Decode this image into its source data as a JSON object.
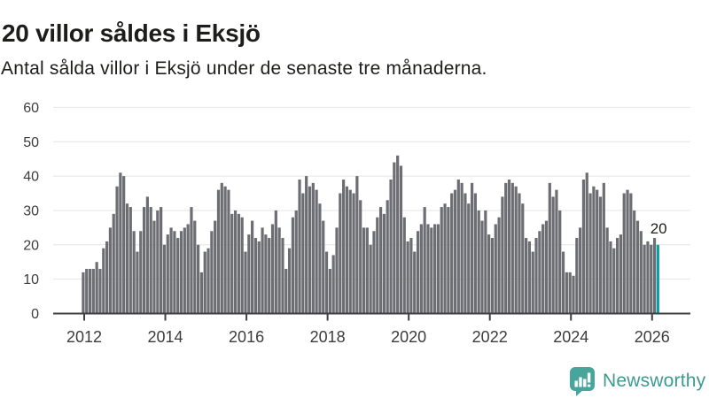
{
  "header": {
    "title": "20 villor såldes i Eksjö",
    "subtitle": "Antal sålda villor i Eksjö under de senaste tre månaderna."
  },
  "chart_data": {
    "type": "bar",
    "title": "20 villor såldes i Eksjö",
    "subtitle": "Antal sålda villor i Eksjö under de senaste tre månaderna.",
    "frequency": "monthly",
    "x_start": "2012-01",
    "x_end": "2026-03",
    "xlabel": "",
    "ylabel": "",
    "ylim": [
      0,
      60
    ],
    "yticks": [
      0,
      10,
      20,
      30,
      40,
      50,
      60
    ],
    "xticks": [
      "2012",
      "2014",
      "2016",
      "2018",
      "2020",
      "2022",
      "2024",
      "2026"
    ],
    "grid": "horizontal",
    "legend": "none",
    "bar_color": "#6d6d74",
    "highlight_color": "#0b9fa1",
    "highlight_index": 170,
    "annotation": {
      "text": "20",
      "attached_to": "last-bar"
    },
    "values": [
      12,
      13,
      13,
      13,
      15,
      13,
      19,
      21,
      25,
      29,
      37,
      41,
      40,
      32,
      31,
      24,
      18,
      24,
      31,
      34,
      31,
      27,
      30,
      31,
      20,
      23,
      25,
      24,
      22,
      24,
      25,
      26,
      31,
      27,
      20,
      12,
      18,
      19,
      24,
      27,
      36,
      38,
      37,
      36,
      29,
      30,
      29,
      28,
      18,
      23,
      27,
      22,
      21,
      25,
      23,
      22,
      26,
      30,
      25,
      22,
      13,
      19,
      28,
      30,
      39,
      35,
      40,
      37,
      38,
      36,
      32,
      27,
      18,
      13,
      17,
      25,
      35,
      39,
      37,
      36,
      35,
      40,
      33,
      25,
      25,
      20,
      24,
      28,
      31,
      29,
      33,
      39,
      44,
      46,
      43,
      28,
      21,
      22,
      18,
      24,
      26,
      31,
      26,
      25,
      26,
      26,
      31,
      32,
      31,
      35,
      36,
      39,
      38,
      35,
      32,
      38,
      35,
      30,
      27,
      30,
      23,
      22,
      26,
      28,
      34,
      38,
      39,
      38,
      37,
      35,
      32,
      22,
      21,
      18,
      22,
      24,
      26,
      27,
      38,
      34,
      36,
      30,
      18,
      12,
      12,
      11,
      22,
      25,
      39,
      41,
      35,
      37,
      36,
      34,
      38,
      25,
      21,
      19,
      22,
      23,
      35,
      36,
      35,
      30,
      27,
      24,
      20,
      21,
      20,
      22,
      20
    ]
  },
  "footer": {
    "brand": "Newsworthy",
    "brand_color": "#3d9a91",
    "logo_icon": "newsworthy-speech-bubble-bar-chart-icon"
  },
  "style": {
    "grid_color": "#e4e4e4",
    "axis_color": "#3f3f3f",
    "tick_label_color": "#3c3c3c",
    "annotation_color": "#1d1d1b"
  }
}
